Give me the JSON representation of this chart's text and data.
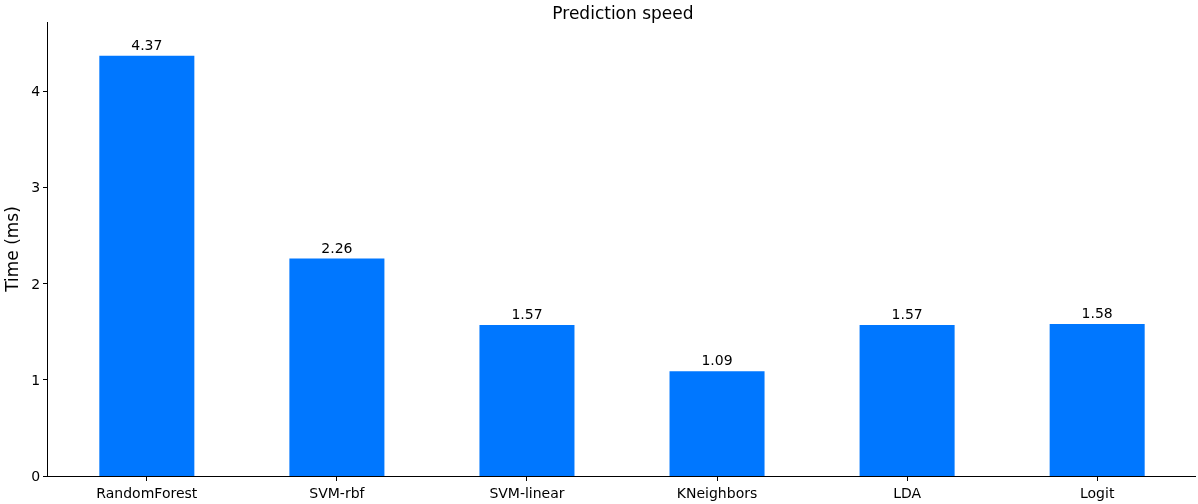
{
  "chart_data": {
    "type": "bar",
    "title": "Prediction speed",
    "ylabel": "Time (ms)",
    "categories": [
      "RandomForest",
      "SVM-rbf",
      "SVM-linear",
      "KNeighbors",
      "LDA",
      "Logit"
    ],
    "values": [
      4.37,
      2.26,
      1.57,
      1.09,
      1.57,
      1.58
    ],
    "color": "#0077ff",
    "ylim": [
      0,
      4.72
    ],
    "yticks": [
      0,
      1,
      2,
      3,
      4
    ],
    "grid": false,
    "data_labels": true,
    "legend": false
  }
}
